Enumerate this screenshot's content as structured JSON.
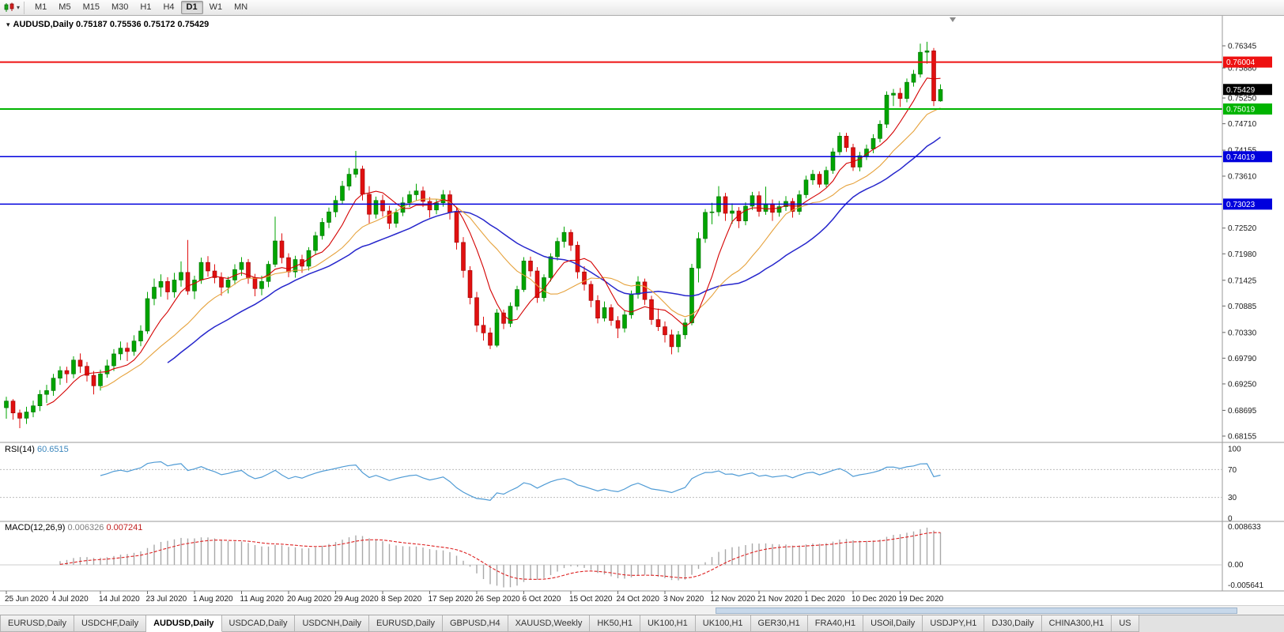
{
  "toolbar": {
    "timeframes": [
      "M1",
      "M5",
      "M15",
      "M30",
      "H1",
      "H4",
      "D1",
      "W1",
      "MN"
    ],
    "active_timeframe": "D1",
    "chart_type_icon": "candlestick-chart-icon"
  },
  "chart": {
    "title": "AUDUSD,Daily",
    "ohlc": "0.75187 0.75536 0.75172 0.75429",
    "colors": {
      "bull": "#00a400",
      "bull_border": "#006e00",
      "bear": "#e01010",
      "bear_border": "#9c0000",
      "ma_fast": "#d40000",
      "ma_mid": "#e6a23c",
      "ma_slow": "#2626cc",
      "axis_line": "#9a9a9a",
      "axis_text": "#1a1a1a"
    },
    "price_axis": {
      "ylim": [
        0.68155,
        0.76975
      ],
      "ticks": [
        "0.76345",
        "0.75880",
        "0.75250",
        "0.74710",
        "0.74155",
        "0.73610",
        "0.72520",
        "0.71980",
        "0.71425",
        "0.70885",
        "0.70330",
        "0.69790",
        "0.69250",
        "0.68695",
        "0.68155"
      ]
    },
    "hlines": [
      {
        "value": "0.76004",
        "price": 0.76004,
        "color": "#ee1111",
        "width": 2
      },
      {
        "value": "0.75019",
        "price": 0.75019,
        "color": "#00b400",
        "width": 2
      },
      {
        "value": "0.74019",
        "price": 0.74019,
        "color": "#0000dd",
        "width": 1.5
      },
      {
        "value": "0.73023",
        "price": 0.73023,
        "color": "#0000dd",
        "width": 1.5
      }
    ],
    "current_price": {
      "value": "0.75429",
      "price": 0.75429,
      "color": "#000000"
    },
    "moving_averages": [
      {
        "period": 7,
        "color": "#d40000",
        "width": 1.1
      },
      {
        "period": 15,
        "color": "#e6a23c",
        "width": 1.1
      },
      {
        "period": 25,
        "color": "#2626cc",
        "width": 1.5
      }
    ],
    "candles": [
      [
        0.6875,
        0.6898,
        0.6852,
        0.6889
      ],
      [
        0.6889,
        0.6893,
        0.685,
        0.6864
      ],
      [
        0.6864,
        0.6871,
        0.6832,
        0.6853
      ],
      [
        0.6853,
        0.6877,
        0.6841,
        0.6866
      ],
      [
        0.6866,
        0.689,
        0.6855,
        0.6879
      ],
      [
        0.6879,
        0.6912,
        0.6868,
        0.6903
      ],
      [
        0.6903,
        0.6923,
        0.6885,
        0.6911
      ],
      [
        0.6911,
        0.6946,
        0.69,
        0.6937
      ],
      [
        0.6937,
        0.6962,
        0.6923,
        0.6953
      ],
      [
        0.6953,
        0.6961,
        0.6927,
        0.6946
      ],
      [
        0.6946,
        0.6983,
        0.6937,
        0.6975
      ],
      [
        0.6975,
        0.6989,
        0.6948,
        0.6962
      ],
      [
        0.6962,
        0.6971,
        0.693,
        0.6943
      ],
      [
        0.6943,
        0.6952,
        0.6903,
        0.6921
      ],
      [
        0.6921,
        0.6955,
        0.6911,
        0.6946
      ],
      [
        0.6946,
        0.6976,
        0.6938,
        0.6963
      ],
      [
        0.6963,
        0.6998,
        0.6952,
        0.6988
      ],
      [
        0.6988,
        0.7014,
        0.6975,
        0.7
      ],
      [
        0.7,
        0.7012,
        0.6973,
        0.6993
      ],
      [
        0.6993,
        0.7027,
        0.6984,
        0.7015
      ],
      [
        0.7015,
        0.7048,
        0.7004,
        0.7036
      ],
      [
        0.7036,
        0.7118,
        0.703,
        0.7104
      ],
      [
        0.7104,
        0.7146,
        0.709,
        0.7128
      ],
      [
        0.7128,
        0.7155,
        0.7108,
        0.714
      ],
      [
        0.714,
        0.7149,
        0.7102,
        0.7118
      ],
      [
        0.7118,
        0.7158,
        0.7106,
        0.7143
      ],
      [
        0.7143,
        0.7182,
        0.7129,
        0.7159
      ],
      [
        0.7159,
        0.7227,
        0.7112,
        0.712
      ],
      [
        0.712,
        0.7152,
        0.7103,
        0.7143
      ],
      [
        0.7143,
        0.719,
        0.7135,
        0.718
      ],
      [
        0.718,
        0.7193,
        0.715,
        0.7162
      ],
      [
        0.7162,
        0.7176,
        0.7136,
        0.7148
      ],
      [
        0.7148,
        0.7159,
        0.711,
        0.7128
      ],
      [
        0.7128,
        0.715,
        0.7115,
        0.7143
      ],
      [
        0.7143,
        0.7176,
        0.7133,
        0.7165
      ],
      [
        0.7165,
        0.7191,
        0.7152,
        0.718
      ],
      [
        0.718,
        0.7187,
        0.7135,
        0.7148
      ],
      [
        0.7148,
        0.7156,
        0.7109,
        0.7125
      ],
      [
        0.7125,
        0.7152,
        0.7111,
        0.714
      ],
      [
        0.714,
        0.7183,
        0.7128,
        0.7176
      ],
      [
        0.7176,
        0.7276,
        0.717,
        0.7225
      ],
      [
        0.7225,
        0.7241,
        0.7178,
        0.719
      ],
      [
        0.719,
        0.7199,
        0.7149,
        0.716
      ],
      [
        0.716,
        0.7194,
        0.7148,
        0.7186
      ],
      [
        0.7186,
        0.7196,
        0.7158,
        0.7172
      ],
      [
        0.7172,
        0.7212,
        0.7163,
        0.7205
      ],
      [
        0.7205,
        0.7244,
        0.7196,
        0.7236
      ],
      [
        0.7236,
        0.7273,
        0.7228,
        0.7264
      ],
      [
        0.7264,
        0.7295,
        0.7252,
        0.7286
      ],
      [
        0.7286,
        0.732,
        0.7275,
        0.731
      ],
      [
        0.731,
        0.7351,
        0.7302,
        0.734
      ],
      [
        0.734,
        0.7378,
        0.7331,
        0.7365
      ],
      [
        0.7365,
        0.7414,
        0.7358,
        0.7376
      ],
      [
        0.7376,
        0.7383,
        0.731,
        0.7323
      ],
      [
        0.7323,
        0.734,
        0.7262,
        0.7281
      ],
      [
        0.7281,
        0.7318,
        0.7272,
        0.731
      ],
      [
        0.731,
        0.7322,
        0.7276,
        0.7288
      ],
      [
        0.7288,
        0.7299,
        0.725,
        0.7262
      ],
      [
        0.7262,
        0.7293,
        0.7253,
        0.7285
      ],
      [
        0.7285,
        0.7317,
        0.7277,
        0.7305
      ],
      [
        0.7305,
        0.733,
        0.7296,
        0.7322
      ],
      [
        0.7322,
        0.7345,
        0.731,
        0.733
      ],
      [
        0.733,
        0.7339,
        0.7296,
        0.7308
      ],
      [
        0.7308,
        0.7317,
        0.7274,
        0.729
      ],
      [
        0.729,
        0.7313,
        0.7281,
        0.7305
      ],
      [
        0.7305,
        0.7332,
        0.7297,
        0.7322
      ],
      [
        0.7322,
        0.7331,
        0.727,
        0.7285
      ],
      [
        0.7285,
        0.7294,
        0.7207,
        0.7222
      ],
      [
        0.7222,
        0.7233,
        0.7148,
        0.7163
      ],
      [
        0.7163,
        0.7172,
        0.7092,
        0.7106
      ],
      [
        0.7106,
        0.7118,
        0.7034,
        0.7048
      ],
      [
        0.7048,
        0.7066,
        0.7016,
        0.7032
      ],
      [
        0.7032,
        0.7043,
        0.6998,
        0.7006
      ],
      [
        0.7006,
        0.7082,
        0.7002,
        0.7074
      ],
      [
        0.7074,
        0.7081,
        0.704,
        0.7052
      ],
      [
        0.7052,
        0.7096,
        0.7044,
        0.7088
      ],
      [
        0.7088,
        0.7131,
        0.708,
        0.7123
      ],
      [
        0.7123,
        0.7191,
        0.7118,
        0.7183
      ],
      [
        0.7183,
        0.7192,
        0.715,
        0.7162
      ],
      [
        0.7162,
        0.717,
        0.7095,
        0.7106
      ],
      [
        0.7106,
        0.7155,
        0.7098,
        0.7148
      ],
      [
        0.7148,
        0.7199,
        0.714,
        0.7192
      ],
      [
        0.7192,
        0.7232,
        0.7184,
        0.7224
      ],
      [
        0.7224,
        0.7255,
        0.7211,
        0.7243
      ],
      [
        0.7243,
        0.7249,
        0.7204,
        0.7216
      ],
      [
        0.7216,
        0.7224,
        0.7146,
        0.716
      ],
      [
        0.716,
        0.7172,
        0.7121,
        0.7134
      ],
      [
        0.7134,
        0.7141,
        0.7086,
        0.71
      ],
      [
        0.71,
        0.7111,
        0.7052,
        0.7063
      ],
      [
        0.7063,
        0.7098,
        0.7056,
        0.7085
      ],
      [
        0.7085,
        0.7092,
        0.7047,
        0.7058
      ],
      [
        0.7058,
        0.7067,
        0.7021,
        0.7042
      ],
      [
        0.7042,
        0.7079,
        0.7033,
        0.707
      ],
      [
        0.707,
        0.7121,
        0.7062,
        0.7113
      ],
      [
        0.7113,
        0.7151,
        0.7104,
        0.7139
      ],
      [
        0.7139,
        0.7146,
        0.7091,
        0.7102
      ],
      [
        0.7102,
        0.711,
        0.7049,
        0.706
      ],
      [
        0.706,
        0.7083,
        0.7036,
        0.7045
      ],
      [
        0.7045,
        0.7056,
        0.7012,
        0.7028
      ],
      [
        0.7028,
        0.7039,
        0.6987,
        0.7003
      ],
      [
        0.7003,
        0.7036,
        0.6991,
        0.7028
      ],
      [
        0.7028,
        0.7062,
        0.7019,
        0.7053
      ],
      [
        0.7053,
        0.7177,
        0.7048,
        0.7168
      ],
      [
        0.7168,
        0.7243,
        0.7138,
        0.723
      ],
      [
        0.723,
        0.7292,
        0.7221,
        0.7285
      ],
      [
        0.7285,
        0.7305,
        0.726,
        0.7286
      ],
      [
        0.7286,
        0.734,
        0.7277,
        0.7318
      ],
      [
        0.7318,
        0.7326,
        0.7267,
        0.7283
      ],
      [
        0.7283,
        0.7304,
        0.7261,
        0.7288
      ],
      [
        0.7288,
        0.7296,
        0.7252,
        0.7267
      ],
      [
        0.7267,
        0.7306,
        0.7258,
        0.7298
      ],
      [
        0.7298,
        0.7328,
        0.729,
        0.732
      ],
      [
        0.732,
        0.7329,
        0.7276,
        0.7287
      ],
      [
        0.7287,
        0.7339,
        0.728,
        0.7303
      ],
      [
        0.7303,
        0.7312,
        0.7267,
        0.7285
      ],
      [
        0.7285,
        0.7309,
        0.7276,
        0.7297
      ],
      [
        0.7297,
        0.7319,
        0.7288,
        0.7308
      ],
      [
        0.7308,
        0.7315,
        0.7274,
        0.7287
      ],
      [
        0.7287,
        0.7331,
        0.728,
        0.7322
      ],
      [
        0.7322,
        0.7362,
        0.7315,
        0.7353
      ],
      [
        0.7353,
        0.7374,
        0.7343,
        0.7365
      ],
      [
        0.7365,
        0.7371,
        0.7337,
        0.7344
      ],
      [
        0.7344,
        0.7381,
        0.7338,
        0.7373
      ],
      [
        0.7373,
        0.742,
        0.7366,
        0.7412
      ],
      [
        0.7412,
        0.7453,
        0.7405,
        0.7445
      ],
      [
        0.7445,
        0.7452,
        0.7412,
        0.7421
      ],
      [
        0.7421,
        0.7429,
        0.7372,
        0.738
      ],
      [
        0.738,
        0.7412,
        0.7371,
        0.7404
      ],
      [
        0.7404,
        0.7427,
        0.7395,
        0.7418
      ],
      [
        0.7418,
        0.7449,
        0.7409,
        0.744
      ],
      [
        0.744,
        0.7478,
        0.7432,
        0.747
      ],
      [
        0.747,
        0.7539,
        0.7462,
        0.7531
      ],
      [
        0.7531,
        0.7544,
        0.7508,
        0.7535
      ],
      [
        0.7535,
        0.7546,
        0.7506,
        0.7524
      ],
      [
        0.7524,
        0.7566,
        0.7516,
        0.7558
      ],
      [
        0.7558,
        0.7584,
        0.7549,
        0.7575
      ],
      [
        0.7575,
        0.7639,
        0.7568,
        0.7621
      ],
      [
        0.7621,
        0.7643,
        0.7597,
        0.7624
      ],
      [
        0.7624,
        0.763,
        0.7508,
        0.7519
      ],
      [
        0.75187,
        0.75536,
        0.75172,
        0.75429
      ]
    ]
  },
  "rsi": {
    "name": "RSI(14)",
    "value": "60.6515",
    "period": 14,
    "axis_labels": [
      "100",
      "70",
      "30",
      "0"
    ],
    "level_lines": [
      70,
      30
    ],
    "color": "#4f9bd5",
    "level_color": "#bcbcbc"
  },
  "macd": {
    "name": "MACD(12,26,9)",
    "value_main": "0.006326",
    "value_signal": "0.007241",
    "fast": 12,
    "slow": 26,
    "signal": 9,
    "axis_labels": [
      "0.008633",
      "0.00",
      "-0.005641"
    ],
    "hist_color": "#a8a8a8",
    "signal_color": "#dd2222"
  },
  "time_axis": {
    "label_every": 7,
    "labels": [
      "25 Jun 2020",
      "4 Jul 2020",
      "14 Jul 2020",
      "23 Jul 2020",
      "1 Aug 2020",
      "11 Aug 2020",
      "20 Aug 2020",
      "29 Aug 2020",
      "8 Sep 2020",
      "17 Sep 2020",
      "26 Sep 2020",
      "6 Oct 2020",
      "15 Oct 2020",
      "24 Oct 2020",
      "3 Nov 2020",
      "12 Nov 2020",
      "21 Nov 2020",
      "1 Dec 2020",
      "10 Dec 2020",
      "19 Dec 2020"
    ]
  },
  "tabs": [
    {
      "label": "EURUSD,Daily"
    },
    {
      "label": "USDCHF,Daily"
    },
    {
      "label": "AUDUSD,Daily",
      "active": true
    },
    {
      "label": "USDCAD,Daily"
    },
    {
      "label": "USDCNH,Daily"
    },
    {
      "label": "EURUSD,Daily"
    },
    {
      "label": "GBPUSD,H4"
    },
    {
      "label": "XAUUSD,Weekly"
    },
    {
      "label": "HK50,H1"
    },
    {
      "label": "UK100,H1"
    },
    {
      "label": "UK100,H1"
    },
    {
      "label": "GER30,H1"
    },
    {
      "label": "FRA40,H1"
    },
    {
      "label": "USOil,Daily"
    },
    {
      "label": "USDJPY,H1"
    },
    {
      "label": "DJ30,Daily"
    },
    {
      "label": "CHINA300,H1"
    },
    {
      "label": "US"
    }
  ]
}
